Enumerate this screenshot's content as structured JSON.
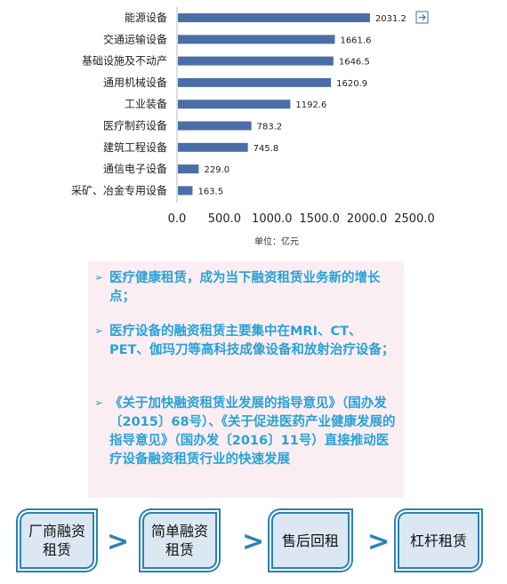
{
  "chart_data": {
    "type": "bar",
    "orientation": "horizontal",
    "categories": [
      "能源设备",
      "交通运输设备",
      "基础设施及不动产",
      "通用机械设备",
      "工业装备",
      "医疗制药设备",
      "建筑工程设备",
      "通信电子设备",
      "采矿、冶金专用设备"
    ],
    "values": [
      2031.2,
      1661.6,
      1646.5,
      1620.9,
      1192.6,
      783.2,
      745.8,
      229.0,
      163.5
    ],
    "value_labels": [
      "2031.2",
      "1661.6",
      "1646.5",
      "1620.9",
      "1192.6",
      "783.2",
      "745.8",
      "229.0",
      "163.5"
    ],
    "x_ticks": [
      "0.0",
      "500.0",
      "1000.0",
      "1500.0",
      "2000.0",
      "2500.0"
    ],
    "xlim": [
      0,
      2500
    ],
    "unit_label": "单位：亿元",
    "bar_color": "#4a6fa8",
    "grid": false
  },
  "bullets": [
    {
      "text": "医疗健康租赁，成为当下融资租赁业务新的增长点；"
    },
    {
      "text": "医疗设备的融资租赁主要集中在MRI、CT、PET、伽玛刀等高科技成像设备和放射治疗设备；"
    },
    {
      "text": "《关于加快融资租赁业发展的指导意见》（国办发〔2015〕68号）、《关于促进医药产业健康发展的指导意见》（国办发〔2016〕11号）直接推动医疗设备融资租赁行业的快速发展"
    }
  ],
  "bullet_color": "#2aa1d7",
  "flow": {
    "steps": [
      "厂商融资\n租赁",
      "简单融资\n租赁",
      "售后回租",
      "杠杆租赁"
    ],
    "separator": ">",
    "color": "#2a83b5"
  }
}
